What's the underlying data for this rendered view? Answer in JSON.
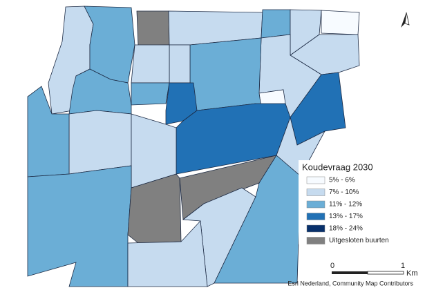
{
  "legend": {
    "title": "Koudevraag 2030",
    "items": [
      {
        "label": "5% - 6%",
        "color": "#f7fbff"
      },
      {
        "label": "7% - 10%",
        "color": "#c6dbef"
      },
      {
        "label": "11% - 12%",
        "color": "#6baed6"
      },
      {
        "label": "13% - 17%",
        "color": "#2171b5"
      },
      {
        "label": "18% - 24%",
        "color": "#08306b"
      },
      {
        "label": "Uitgesloten buurten",
        "color": "#808080"
      }
    ]
  },
  "scale_bar": {
    "labels": [
      "0",
      "1"
    ],
    "unit": "Km"
  },
  "attribution": "Esri Nederland, Community Map Contributors"
}
